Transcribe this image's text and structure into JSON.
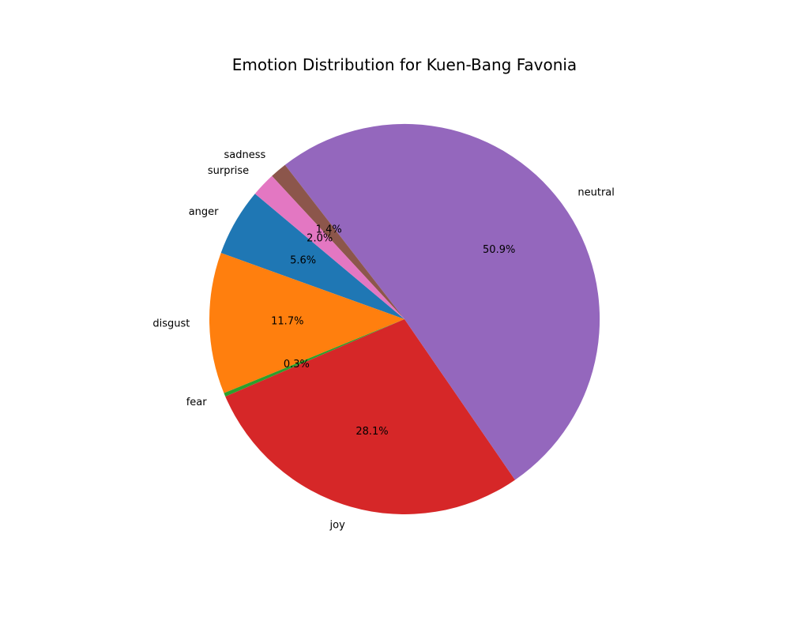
{
  "chart_data": {
    "type": "pie",
    "title": "Emotion Distribution for Kuen-Bang Favonia",
    "start_angle_deg": 140,
    "direction": "counterclockwise",
    "slices": [
      {
        "label": "anger",
        "value": 5.6,
        "pct_text": "5.6%",
        "color": "#1f77b4"
      },
      {
        "label": "disgust",
        "value": 11.7,
        "pct_text": "11.7%",
        "color": "#ff7f0e"
      },
      {
        "label": "fear",
        "value": 0.3,
        "pct_text": "0.3%",
        "color": "#2ca02c"
      },
      {
        "label": "joy",
        "value": 28.1,
        "pct_text": "28.1%",
        "color": "#d62728"
      },
      {
        "label": "neutral",
        "value": 50.9,
        "pct_text": "50.9%",
        "color": "#9467bd"
      },
      {
        "label": "sadness",
        "value": 1.4,
        "pct_text": "1.4%",
        "color": "#8c564b"
      },
      {
        "label": "surprise",
        "value": 2.0,
        "pct_text": "2.0%",
        "color": "#e377c2"
      }
    ]
  }
}
